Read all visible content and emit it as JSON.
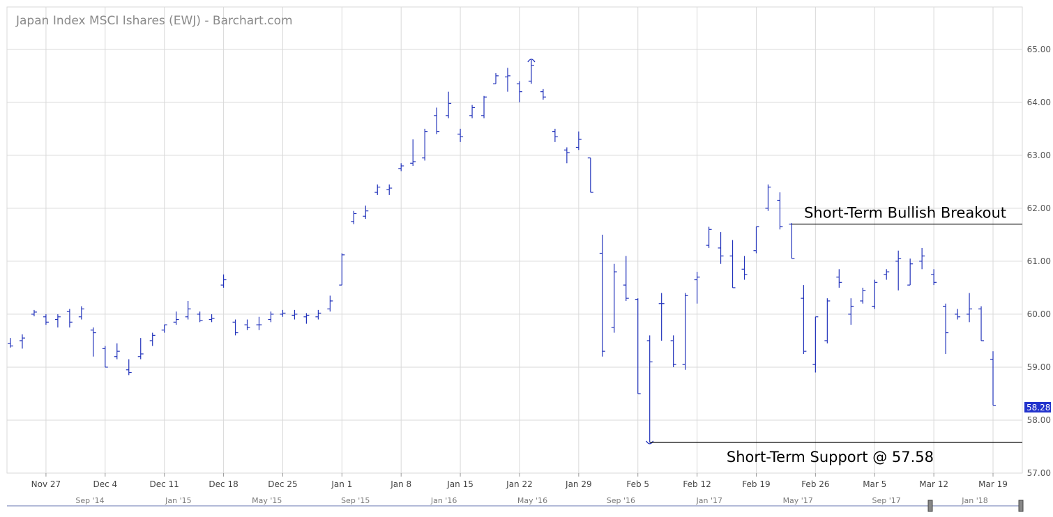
{
  "chart_data": {
    "type": "ohlc",
    "title": "Japan Index MSCI Ishares (EWJ) - Barchart.com",
    "ylim": [
      57.0,
      65.8
    ],
    "yticks": [
      "57.00",
      "58.00",
      "59.00",
      "60.00",
      "61.00",
      "62.00",
      "63.00",
      "64.00",
      "65.00"
    ],
    "xticks": [
      "Nov 27",
      "Dec 4",
      "Dec 11",
      "Dec 18",
      "Dec 25",
      "Jan 1",
      "Jan 8",
      "Jan 15",
      "Jan 22",
      "Jan 29",
      "Feb 5",
      "Feb 12",
      "Feb 19",
      "Feb 26",
      "Mar 5",
      "Mar 12",
      "Mar 19"
    ],
    "last_price": "58.28",
    "series": [
      {
        "color": "#2233bb",
        "bars": [
          [
            59.45,
            59.55,
            59.37,
            59.4
          ],
          [
            59.5,
            59.62,
            59.35,
            59.55
          ],
          [
            60.0,
            60.08,
            59.96,
            60.04
          ],
          [
            59.95,
            60.0,
            59.8,
            59.85
          ],
          [
            59.9,
            60.0,
            59.75,
            59.95
          ],
          [
            60.05,
            60.1,
            59.75,
            59.85
          ],
          [
            59.95,
            60.15,
            59.9,
            60.1
          ],
          [
            59.7,
            59.75,
            59.2,
            59.65
          ],
          [
            59.35,
            59.4,
            59.0,
            59.0
          ],
          [
            59.2,
            59.45,
            59.15,
            59.3
          ],
          [
            58.95,
            59.15,
            58.85,
            58.9
          ],
          [
            59.2,
            59.55,
            59.15,
            59.25
          ],
          [
            59.5,
            59.65,
            59.4,
            59.6
          ],
          [
            59.7,
            59.8,
            59.65,
            59.8
          ],
          [
            59.85,
            60.05,
            59.8,
            59.9
          ],
          [
            59.95,
            60.25,
            59.9,
            60.1
          ],
          [
            60.0,
            60.05,
            59.85,
            59.88
          ],
          [
            59.9,
            60.0,
            59.85,
            59.92
          ],
          [
            60.55,
            60.75,
            60.5,
            60.65
          ],
          [
            59.85,
            59.9,
            59.6,
            59.65
          ],
          [
            59.8,
            59.9,
            59.7,
            59.75
          ],
          [
            59.8,
            59.95,
            59.7,
            59.8
          ],
          [
            59.9,
            60.05,
            59.85,
            60.0
          ],
          [
            60.0,
            60.08,
            59.95,
            60.02
          ],
          [
            59.98,
            60.08,
            59.9,
            60.0
          ],
          [
            59.95,
            60.02,
            59.82,
            59.98
          ],
          [
            59.95,
            60.08,
            59.9,
            60.02
          ],
          [
            60.1,
            60.35,
            60.05,
            60.25
          ],
          [
            60.55,
            61.15,
            60.55,
            61.12
          ],
          [
            61.75,
            61.95,
            61.7,
            61.9
          ],
          [
            61.85,
            62.05,
            61.8,
            61.95
          ],
          [
            62.3,
            62.45,
            62.25,
            62.4
          ],
          [
            62.35,
            62.45,
            62.25,
            62.38
          ],
          [
            62.75,
            62.85,
            62.7,
            62.8
          ],
          [
            62.85,
            63.3,
            62.8,
            62.88
          ],
          [
            62.95,
            63.5,
            62.9,
            63.45
          ],
          [
            63.75,
            63.9,
            63.4,
            63.45
          ],
          [
            63.75,
            64.2,
            63.7,
            63.98
          ],
          [
            63.4,
            63.5,
            63.25,
            63.35
          ],
          [
            63.75,
            63.95,
            63.7,
            63.9
          ],
          [
            63.75,
            64.12,
            63.7,
            64.1
          ],
          [
            64.35,
            64.55,
            64.35,
            64.5
          ],
          [
            64.48,
            64.65,
            64.2,
            64.5
          ],
          [
            64.35,
            64.4,
            64.0,
            64.2
          ],
          [
            64.4,
            64.8,
            64.35,
            64.7
          ],
          [
            64.2,
            64.25,
            64.05,
            64.1
          ],
          [
            63.45,
            63.5,
            63.25,
            63.35
          ],
          [
            63.1,
            63.15,
            62.85,
            63.05
          ],
          [
            63.15,
            63.45,
            63.1,
            63.3
          ],
          [
            62.95,
            62.95,
            62.3,
            62.3
          ],
          [
            61.15,
            61.5,
            59.2,
            59.3
          ],
          [
            59.75,
            60.95,
            59.65,
            60.8
          ],
          [
            60.55,
            61.1,
            60.25,
            60.3
          ],
          [
            60.28,
            60.3,
            58.5,
            58.5
          ],
          [
            59.5,
            59.6,
            57.58,
            59.1
          ],
          [
            60.2,
            60.4,
            59.5,
            60.2
          ],
          [
            59.5,
            59.6,
            59.0,
            59.05
          ],
          [
            59.05,
            60.4,
            58.95,
            60.35
          ],
          [
            60.65,
            60.8,
            60.2,
            60.7
          ],
          [
            61.3,
            61.65,
            61.25,
            61.6
          ],
          [
            61.25,
            61.55,
            60.95,
            61.1
          ],
          [
            61.1,
            61.4,
            60.5,
            60.5
          ],
          [
            60.85,
            61.1,
            60.65,
            60.75
          ],
          [
            61.2,
            61.65,
            61.15,
            61.65
          ],
          [
            62.0,
            62.45,
            61.95,
            62.4
          ],
          [
            62.15,
            62.3,
            61.6,
            61.65
          ],
          [
            61.7,
            61.72,
            61.05,
            61.05
          ],
          [
            60.3,
            60.55,
            59.25,
            59.3
          ],
          [
            59.05,
            59.95,
            58.9,
            59.95
          ],
          [
            59.5,
            60.3,
            59.45,
            60.25
          ],
          [
            60.7,
            60.85,
            60.5,
            60.6
          ],
          [
            60.0,
            60.3,
            59.8,
            60.15
          ],
          [
            60.25,
            60.5,
            60.2,
            60.45
          ],
          [
            60.15,
            60.65,
            60.1,
            60.6
          ],
          [
            60.75,
            60.85,
            60.65,
            60.8
          ],
          [
            61.0,
            61.2,
            60.45,
            61.05
          ],
          [
            60.55,
            61.05,
            60.55,
            60.95
          ],
          [
            61.0,
            61.25,
            60.85,
            61.1
          ],
          [
            60.75,
            60.85,
            60.55,
            60.6
          ],
          [
            60.15,
            60.2,
            59.25,
            59.65
          ],
          [
            60.0,
            60.1,
            59.9,
            59.95
          ],
          [
            60.0,
            60.4,
            59.85,
            60.1
          ],
          [
            60.1,
            60.15,
            59.5,
            59.5
          ],
          [
            59.15,
            59.3,
            58.28,
            58.28
          ]
        ]
      }
    ],
    "annotations": [
      {
        "label": "Short-Term Bullish Breakout",
        "value": 61.7
      },
      {
        "label": "Short-Term Support @ 57.58",
        "value": 57.58
      }
    ],
    "navigator_labels": [
      "Sep '14",
      "Jan '15",
      "May '15",
      "Sep '15",
      "Jan '16",
      "May '16",
      "Sep '16",
      "Jan '17",
      "May '17",
      "Sep '17",
      "Jan '18"
    ],
    "grid": true,
    "legend": "none"
  },
  "colors": {
    "bar": "#2233bb",
    "grid": "#d9d9d9",
    "last_price_bg": "#2233cc"
  }
}
